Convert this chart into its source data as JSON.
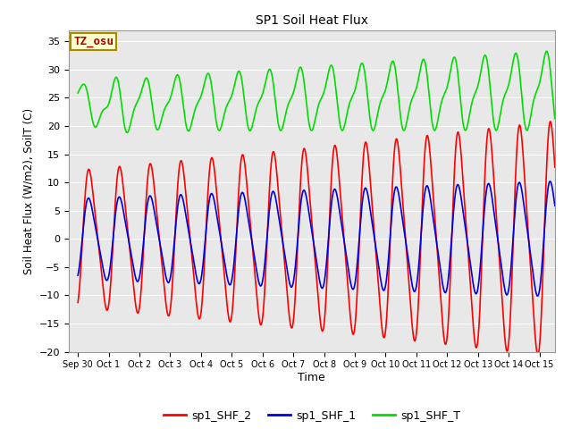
{
  "title": "SP1 Soil Heat Flux",
  "xlabel": "Time",
  "ylabel": "Soil Heat Flux (W/m2), SoilT (C)",
  "ylim": [
    -20,
    37
  ],
  "xlim": [
    -0.3,
    15.5
  ],
  "bg_color": "#e8e8e8",
  "fig_bg_color": "#ffffff",
  "grid_color": "#ffffff",
  "annotation_text": "TZ_osu",
  "annotation_bg": "#ffffcc",
  "annotation_border": "#aa8800",
  "annotation_text_color": "#aa0000",
  "line_colors": {
    "shf2": "#ff0000",
    "shf1": "#0000dd",
    "shfT": "#00dd00"
  },
  "line_widths": {
    "shf2": 1.2,
    "shf1": 1.2,
    "shfT": 1.2
  },
  "legend_labels": [
    "sp1_SHF_2",
    "sp1_SHF_1",
    "sp1_SHF_T"
  ],
  "xtick_labels": [
    "Sep 30",
    "Oct 1",
    "Oct 2",
    "Oct 3",
    "Oct 4",
    "Oct 5",
    "Oct 6",
    "Oct 7",
    "Oct 8",
    "Oct 9",
    "Oct 10",
    "Oct 11",
    "Oct 12",
    "Oct 13",
    "Oct 14",
    "Oct 15"
  ],
  "xtick_positions": [
    0,
    1,
    2,
    3,
    4,
    5,
    6,
    7,
    8,
    9,
    10,
    11,
    12,
    13,
    14,
    15
  ],
  "ytick_positions": [
    -20,
    -15,
    -10,
    -5,
    0,
    5,
    10,
    15,
    20,
    25,
    30,
    35
  ]
}
